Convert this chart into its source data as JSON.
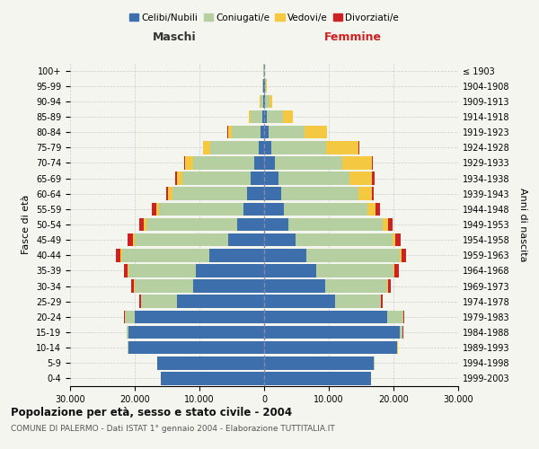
{
  "age_groups": [
    "0-4",
    "5-9",
    "10-14",
    "15-19",
    "20-24",
    "25-29",
    "30-34",
    "35-39",
    "40-44",
    "45-49",
    "50-54",
    "55-59",
    "60-64",
    "65-69",
    "70-74",
    "75-79",
    "80-84",
    "85-89",
    "90-94",
    "95-99",
    "100+"
  ],
  "birth_years": [
    "1999-2003",
    "1994-1998",
    "1989-1993",
    "1984-1988",
    "1979-1983",
    "1974-1978",
    "1969-1973",
    "1964-1968",
    "1959-1963",
    "1954-1958",
    "1949-1953",
    "1944-1948",
    "1939-1943",
    "1934-1938",
    "1929-1933",
    "1924-1928",
    "1919-1923",
    "1914-1918",
    "1909-1913",
    "1904-1908",
    "≤ 1903"
  ],
  "male": {
    "celibi": [
      16000,
      16500,
      21000,
      21000,
      20000,
      13500,
      11000,
      10500,
      8500,
      5500,
      4200,
      3200,
      2600,
      2100,
      1500,
      900,
      500,
      300,
      150,
      80,
      50
    ],
    "coniugati": [
      10,
      20,
      50,
      200,
      1500,
      5500,
      9000,
      10500,
      13500,
      14500,
      14000,
      13000,
      11500,
      10500,
      9500,
      7500,
      4500,
      1800,
      400,
      150,
      80
    ],
    "vedovi": [
      5,
      10,
      20,
      30,
      50,
      80,
      100,
      150,
      200,
      300,
      400,
      500,
      700,
      900,
      1200,
      1000,
      600,
      200,
      80,
      30,
      10
    ],
    "divorziati": [
      3,
      5,
      10,
      30,
      80,
      200,
      400,
      500,
      700,
      800,
      700,
      600,
      400,
      300,
      200,
      80,
      50,
      30,
      20,
      10,
      5
    ]
  },
  "female": {
    "nubili": [
      16500,
      17000,
      20500,
      21000,
      19000,
      11000,
      9500,
      8000,
      6500,
      4800,
      3800,
      3000,
      2600,
      2200,
      1600,
      1100,
      700,
      400,
      200,
      100,
      50
    ],
    "coniugate": [
      20,
      50,
      100,
      400,
      2500,
      7000,
      9500,
      12000,
      14500,
      15000,
      14500,
      13000,
      12000,
      11000,
      10500,
      8500,
      5500,
      2500,
      600,
      200,
      80
    ],
    "vedove": [
      10,
      20,
      30,
      50,
      80,
      100,
      150,
      200,
      300,
      500,
      800,
      1200,
      2000,
      3500,
      4500,
      5000,
      3500,
      1500,
      400,
      100,
      30
    ],
    "divorziate": [
      5,
      10,
      20,
      50,
      100,
      200,
      500,
      600,
      700,
      800,
      800,
      700,
      400,
      350,
      250,
      150,
      80,
      50,
      30,
      15,
      5
    ]
  },
  "colors": {
    "celibi": "#3d6fad",
    "coniugati": "#b5cfa0",
    "vedovi": "#f5c842",
    "divorziati": "#cc2222"
  },
  "xlim": 30000,
  "title": "Popolazione per età, sesso e stato civile - 2004",
  "subtitle": "COMUNE DI PALERMO - Dati ISTAT 1° gennaio 2004 - Elaborazione TUTTITALIA.IT",
  "ylabel_left": "Fasce di età",
  "ylabel_right": "Anni di nascita",
  "xlabel_left": "Maschi",
  "xlabel_right": "Femmine",
  "background_color": "#f5f5f0",
  "plot_bg_color": "#f5f5f0",
  "grid_color": "#cccccc"
}
